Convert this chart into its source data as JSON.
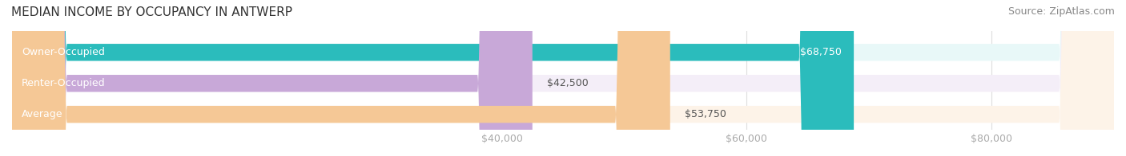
{
  "title": "MEDIAN INCOME BY OCCUPANCY IN ANTWERP",
  "source": "Source: ZipAtlas.com",
  "categories": [
    "Owner-Occupied",
    "Renter-Occupied",
    "Average"
  ],
  "values": [
    68750,
    42500,
    53750
  ],
  "bar_colors": [
    "#2bbcbc",
    "#c8a8d8",
    "#f5c896"
  ],
  "bar_bg_colors": [
    "#e8f8f8",
    "#f4eef8",
    "#fdf3e8"
  ],
  "value_labels": [
    "$68,750",
    "$42,500",
    "$53,750"
  ],
  "x_tick_labels": [
    "$40,000",
    "$60,000",
    "$80,000"
  ],
  "x_tick_values": [
    40000,
    60000,
    80000
  ],
  "xlim": [
    0,
    90000
  ],
  "title_fontsize": 11,
  "source_fontsize": 9,
  "bar_label_fontsize": 9,
  "tick_fontsize": 9
}
